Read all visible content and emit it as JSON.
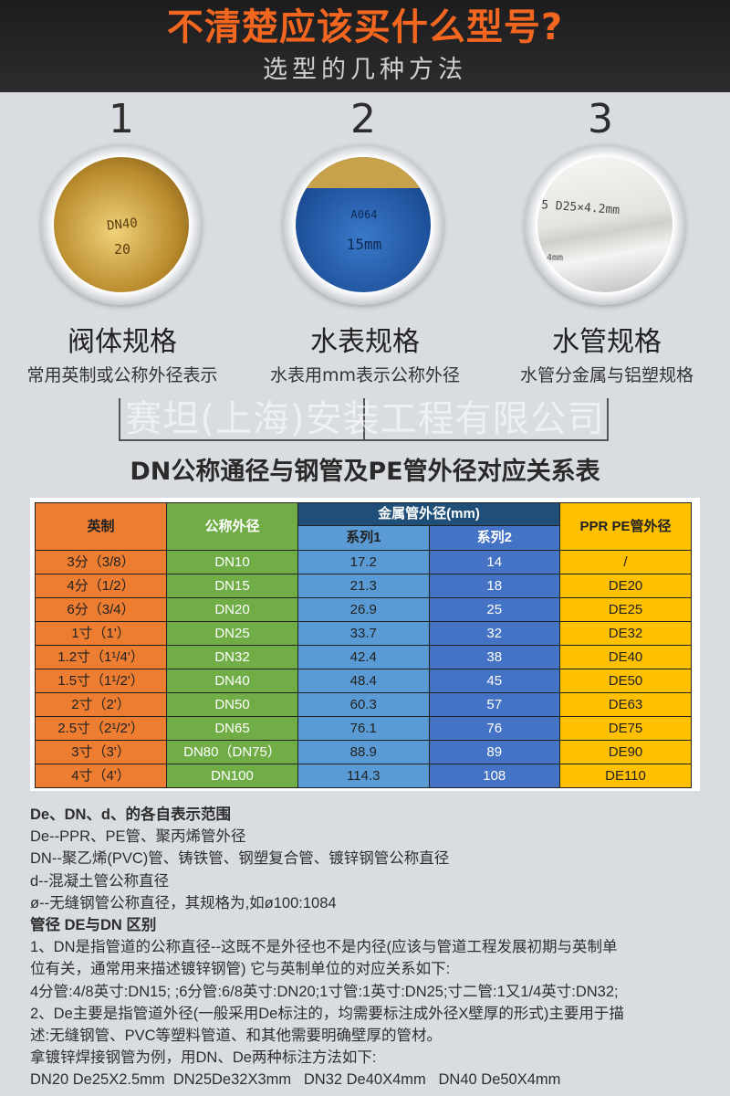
{
  "header": {
    "title": "不清楚应该买什么型号?",
    "subtitle": "选型的几种方法"
  },
  "methods": [
    {
      "number": "1",
      "label": "阀体规格",
      "desc": "常用英制或公称外径表示",
      "photo_text": [
        "DN40",
        "20"
      ]
    },
    {
      "number": "2",
      "label": "水表规格",
      "desc": "水表用mm表示公称外径",
      "photo_text": [
        "A064",
        "15mm"
      ]
    },
    {
      "number": "3",
      "label": "水管规格",
      "desc": "水管分金属与铝塑规格",
      "photo_text": [
        "5 D25×4.2mm",
        "4mm"
      ]
    }
  ],
  "table": {
    "title": "DN公称通径与钢管及PE管外径对应关系表",
    "headers": {
      "imperial": "英制",
      "nominal": "公称外径",
      "metal": "金属管外径(mm)",
      "series1": "系列1",
      "series2": "系列2",
      "ppr": "PPR  PE管外径"
    },
    "watermark": "赛坦(上海)安装工程有限公司",
    "colors": {
      "imperial": "#ed7d31",
      "nominal": "#70ad47",
      "series1": "#5b9bd5",
      "series2": "#4472c4",
      "ppr": "#ffc000",
      "metal_header": "#1f4e79"
    },
    "rows": [
      [
        "3分（3/8）",
        "DN10",
        "17.2",
        "14",
        "/"
      ],
      [
        "4分（1/2）",
        "DN15",
        "21.3",
        "18",
        "DE20"
      ],
      [
        "6分（3/4）",
        "DN20",
        "26.9",
        "25",
        "DE25"
      ],
      [
        "1寸（1'）",
        "DN25",
        "33.7",
        "32",
        "DE32"
      ],
      [
        "1.2寸（1¹/4'）",
        "DN32",
        "42.4",
        "38",
        "DE40"
      ],
      [
        "1.5寸（1¹/2'）",
        "DN40",
        "48.4",
        "45",
        "DE50"
      ],
      [
        "2寸（2'）",
        "DN50",
        "60.3",
        "57",
        "DE63"
      ],
      [
        "2.5寸（2¹/2'）",
        "DN65",
        "76.1",
        "76",
        "DE75"
      ],
      [
        "3寸（3'）",
        "DN80（DN75）",
        "88.9",
        "89",
        "DE90"
      ],
      [
        "4寸（4'）",
        "DN100",
        "114.3",
        "108",
        "DE110"
      ]
    ]
  },
  "notes": [
    "De、DN、d、的各自表示范围",
    "De--PPR、PE管、聚丙烯管外径",
    "DN--聚乙烯(PVC)管、铸铁管、钢塑复合管、镀锌钢管公称直径",
    "d--混凝土管公称直径",
    "ø--无缝钢管公称直径，其规格为,如ø100:1084",
    "管径 DE与DN 区别",
    "1、DN是指管道的公称直径--这既不是外径也不是内径(应该与管道工程发展初期与英制单",
    "位有关，通常用来描述镀锌钢管) 它与英制单位的对应关系如下:",
    "4分管:4/8英寸:DN15; ;6分管:6/8英寸:DN20;1寸管:1英寸:DN25;寸二管:1又1/4英寸:DN32;",
    "2、De主要是指管道外径(一般采用De标注的，均需要标注成外径X壁厚的形式)主要用于描",
    "述:无缝钢管、PVC等塑料管道、和其他需要明确壁厚的管材。",
    "拿镀锌焊接钢管为例，用DN、De两种标注方法如下:",
    "DN20 De25X2.5mm  DN25De32X3mm   DN32 De40X4mm   DN40 De50X4mm"
  ]
}
